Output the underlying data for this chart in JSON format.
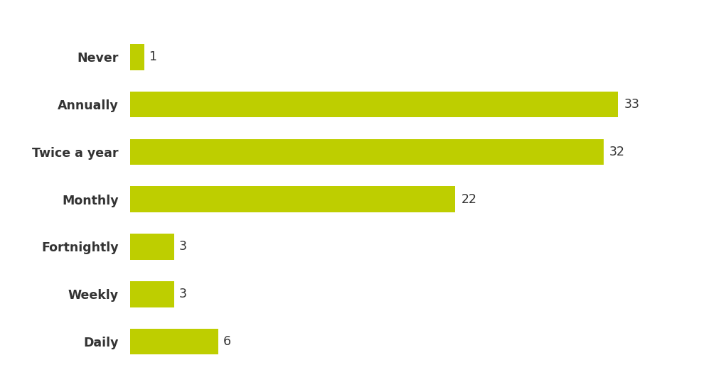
{
  "categories": [
    "Never",
    "Annually",
    "Twice a year",
    "Monthly",
    "Fortnightly",
    "Weekly",
    "Daily"
  ],
  "values": [
    1,
    33,
    32,
    22,
    3,
    3,
    6
  ],
  "bar_color": "#BECE00",
  "label_color": "#333333",
  "value_color": "#333333",
  "background_color": "#ffffff",
  "bar_height": 0.55,
  "xlim": [
    0,
    38
  ],
  "label_fontsize": 12.5,
  "value_fontsize": 12.5,
  "figsize": [
    10.14,
    5.45
  ],
  "dpi": 100
}
